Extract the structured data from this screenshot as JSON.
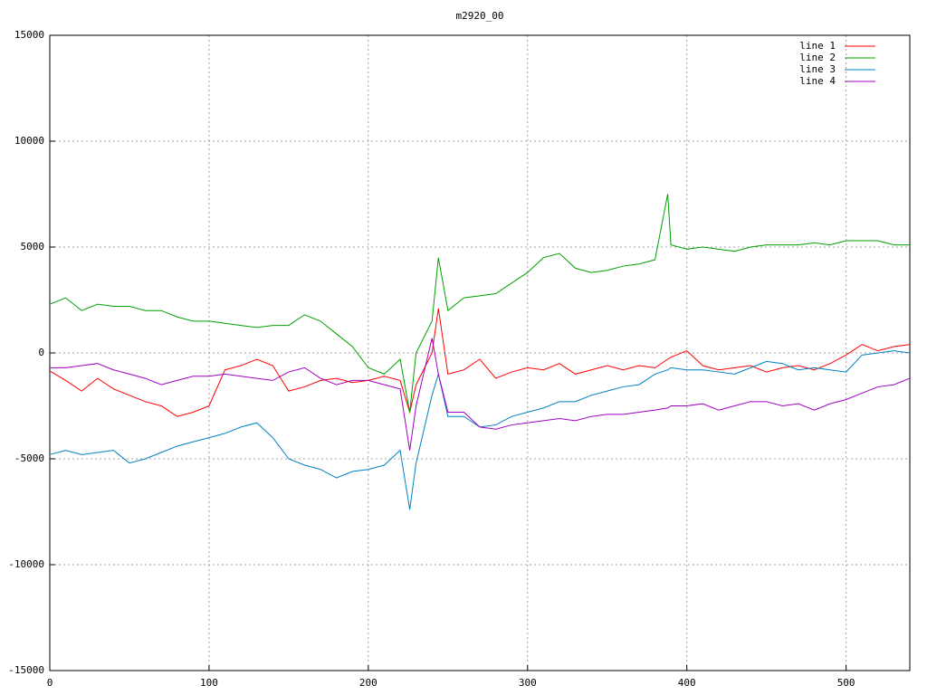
{
  "chart_data": {
    "type": "line",
    "title": "m2920_00",
    "x": [
      0,
      10,
      20,
      30,
      40,
      50,
      60,
      70,
      80,
      90,
      100,
      110,
      120,
      130,
      140,
      150,
      160,
      170,
      180,
      190,
      200,
      210,
      220,
      226,
      230,
      240,
      244,
      250,
      260,
      270,
      280,
      290,
      300,
      310,
      320,
      330,
      340,
      350,
      360,
      370,
      380,
      388,
      390,
      400,
      410,
      420,
      430,
      440,
      450,
      460,
      470,
      480,
      490,
      500,
      510,
      520,
      530,
      540
    ],
    "series": [
      {
        "name": "line 1",
        "color": "#ff0000",
        "values": [
          -850,
          -1300,
          -1800,
          -1200,
          -1700,
          -2000,
          -2300,
          -2500,
          -3000,
          -2800,
          -2500,
          -800,
          -600,
          -300,
          -600,
          -1800,
          -1600,
          -1300,
          -1200,
          -1400,
          -1300,
          -1100,
          -1300,
          -2800,
          -1500,
          0,
          2100,
          -1000,
          -800,
          -300,
          -1200,
          -900,
          -700,
          -800,
          -500,
          -1000,
          -800,
          -600,
          -800,
          -600,
          -700,
          -300,
          -200,
          100,
          -600,
          -800,
          -700,
          -600,
          -900,
          -700,
          -600,
          -800,
          -500,
          -100,
          400,
          100,
          300,
          400
        ]
      },
      {
        "name": "line 2",
        "color": "#00a000",
        "values": [
          2300,
          2600,
          2000,
          2300,
          2200,
          2200,
          2000,
          2000,
          1700,
          1500,
          1500,
          1400,
          1300,
          1200,
          1300,
          1300,
          1800,
          1500,
          900,
          300,
          -700,
          -1000,
          -300,
          -2800,
          0,
          1500,
          4500,
          2000,
          2600,
          2700,
          2800,
          3300,
          3800,
          4500,
          4700,
          4000,
          3800,
          3900,
          4100,
          4200,
          4400,
          7500,
          5100,
          4900,
          5000,
          4900,
          4800,
          5000,
          5100,
          5100,
          5100,
          5200,
          5100,
          5300,
          5300,
          5300,
          5100,
          5100
        ]
      },
      {
        "name": "line 3",
        "color": "#0080c0",
        "values": [
          -4800,
          -4600,
          -4800,
          -4700,
          -4600,
          -5200,
          -5000,
          -4700,
          -4400,
          -4200,
          -4000,
          -3800,
          -3500,
          -3300,
          -4000,
          -5000,
          -5300,
          -5500,
          -5900,
          -5600,
          -5500,
          -5300,
          -4600,
          -7400,
          -5200,
          -2000,
          -1000,
          -3000,
          -3000,
          -3500,
          -3400,
          -3000,
          -2800,
          -2600,
          -2300,
          -2300,
          -2000,
          -1800,
          -1600,
          -1500,
          -1000,
          -800,
          -700,
          -800,
          -800,
          -900,
          -1000,
          -700,
          -400,
          -500,
          -800,
          -700,
          -800,
          -900,
          -100,
          0,
          100,
          0
        ]
      },
      {
        "name": "line 4",
        "color": "#a000c0",
        "values": [
          -700,
          -700,
          -600,
          -500,
          -800,
          -1000,
          -1200,
          -1500,
          -1300,
          -1100,
          -1100,
          -1000,
          -1100,
          -1200,
          -1300,
          -900,
          -700,
          -1200,
          -1500,
          -1300,
          -1300,
          -1500,
          -1700,
          -4600,
          -2500,
          700,
          -1000,
          -2800,
          -2800,
          -3500,
          -3600,
          -3400,
          -3300,
          -3200,
          -3100,
          -3200,
          -3000,
          -2900,
          -2900,
          -2800,
          -2700,
          -2600,
          -2500,
          -2500,
          -2400,
          -2700,
          -2500,
          -2300,
          -2300,
          -2500,
          -2400,
          -2700,
          -2400,
          -2200,
          -1900,
          -1600,
          -1500,
          -1200
        ]
      }
    ],
    "xlim": [
      0,
      540
    ],
    "xticks": [
      0,
      100,
      200,
      300,
      400,
      500
    ],
    "ylim": [
      -15000,
      15000
    ],
    "yticks": [
      -15000,
      -10000,
      -5000,
      0,
      5000,
      10000,
      15000
    ],
    "grid": true,
    "legend": "top-right"
  }
}
